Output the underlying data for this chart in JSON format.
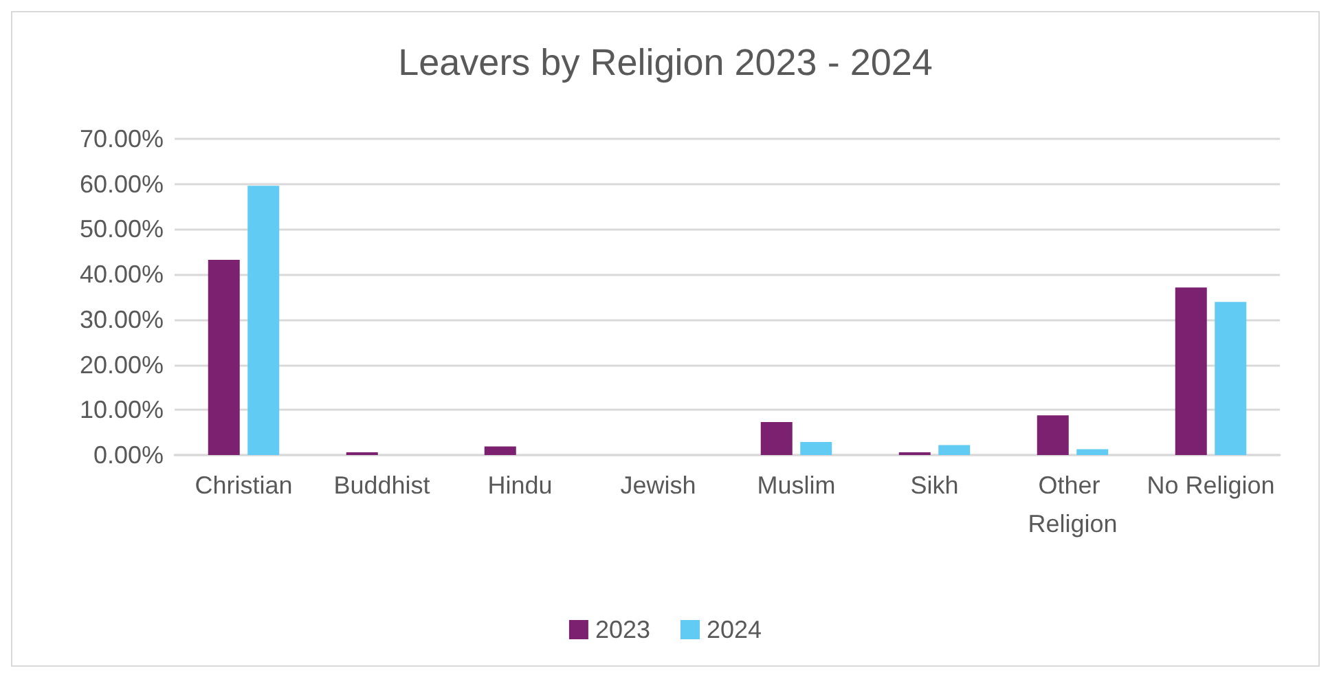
{
  "chart_data": {
    "type": "bar",
    "title": "Leavers by Religion 2023 - 2024",
    "categories": [
      "Christian",
      "Buddhist",
      "Hindu",
      "Jewish",
      "Muslim",
      "Sikh",
      "Other Religion",
      "No Religion"
    ],
    "series": [
      {
        "name": "2023",
        "color": "#7b2170",
        "values": [
          43.2,
          0.6,
          1.9,
          0,
          7.3,
          0.6,
          8.8,
          37.1
        ]
      },
      {
        "name": "2024",
        "color": "#61cbf3",
        "values": [
          59.6,
          0,
          0,
          0,
          2.9,
          2.2,
          1.3,
          33.9
        ]
      }
    ],
    "ylim": [
      0,
      70
    ],
    "yticks": [
      {
        "value": 0,
        "label": "0.00%"
      },
      {
        "value": 10,
        "label": "10.00%"
      },
      {
        "value": 20,
        "label": "20.00%"
      },
      {
        "value": 30,
        "label": "30.00%"
      },
      {
        "value": 40,
        "label": "40.00%"
      },
      {
        "value": 50,
        "label": "50.00%"
      },
      {
        "value": 60,
        "label": "60.00%"
      },
      {
        "value": 70,
        "label": "70.00%"
      }
    ],
    "grid": "y",
    "legend": "bottom"
  }
}
